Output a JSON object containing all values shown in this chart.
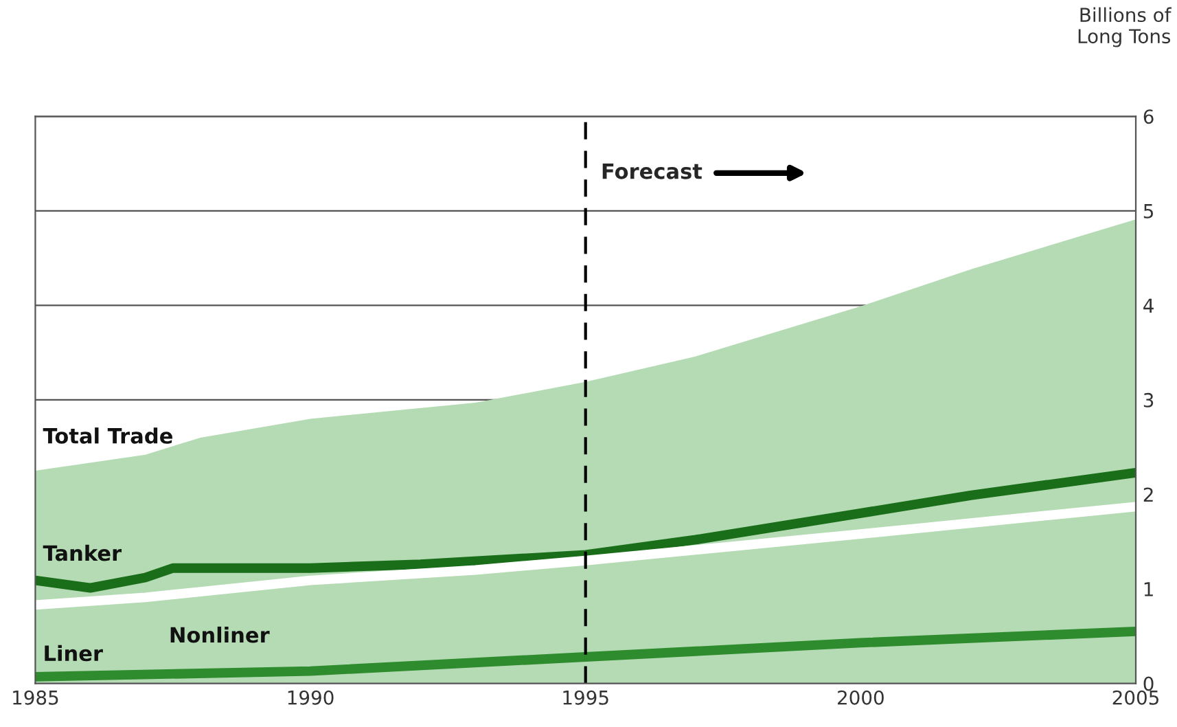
{
  "chart_data": {
    "type": "line",
    "ylabel": "Billions of\nLong Tons",
    "x": [
      1985,
      1987,
      1988,
      1990,
      1993,
      1995,
      1997,
      2000,
      2002,
      2005
    ],
    "series": [
      {
        "name": "Total Trade",
        "type": "area",
        "color": "#b4dbb4",
        "values": [
          2.25,
          2.42,
          2.6,
          2.8,
          2.97,
          3.19,
          3.46,
          3.99,
          4.38,
          4.91
        ]
      },
      {
        "name": "Tanker",
        "color": "#1a6e1a",
        "x": [
          1985,
          1986,
          1987,
          1987.5,
          1990,
          1992,
          1995,
          1997,
          2000,
          2002,
          2005
        ],
        "values": [
          1.09,
          1.01,
          1.12,
          1.22,
          1.22,
          1.26,
          1.36,
          1.52,
          1.8,
          1.99,
          2.23
        ]
      },
      {
        "name": "Nonliner",
        "color": "#ffffff",
        "x": [
          1985,
          1987,
          1988,
          1990,
          1993,
          1995,
          2000,
          2005
        ],
        "values": [
          0.83,
          0.91,
          0.97,
          1.09,
          1.2,
          1.3,
          1.58,
          1.87
        ]
      },
      {
        "name": "Liner",
        "color": "#2e8b2e",
        "x": [
          1985,
          1990,
          1995,
          2000,
          2005
        ],
        "values": [
          0.07,
          0.13,
          0.28,
          0.43,
          0.55
        ]
      }
    ],
    "xlim": [
      1985,
      2005
    ],
    "xticks": [
      1985,
      1990,
      1995,
      2000,
      2005
    ],
    "ylim": [
      0,
      6
    ],
    "yticks": [
      0,
      1,
      2,
      3,
      4,
      5,
      6
    ],
    "grid": "y",
    "ref_lines": [
      {
        "axis": "x",
        "value": 1995,
        "label": "Forecast",
        "color": "#000000",
        "line_style": "dashed"
      }
    ]
  }
}
